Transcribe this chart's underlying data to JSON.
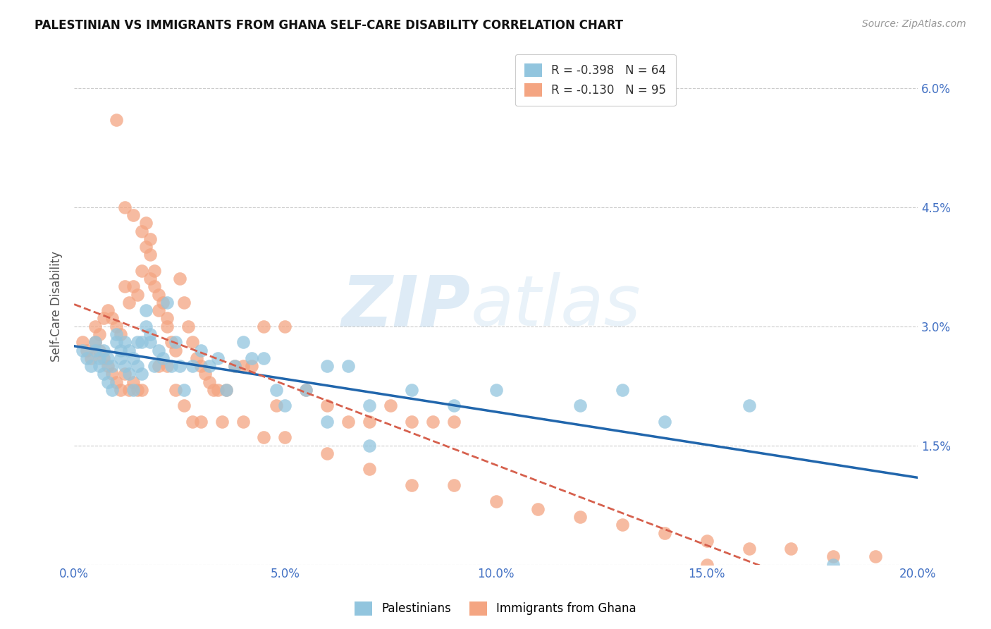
{
  "title": "PALESTINIAN VS IMMIGRANTS FROM GHANA SELF-CARE DISABILITY CORRELATION CHART",
  "source": "Source: ZipAtlas.com",
  "ylabel": "Self-Care Disability",
  "xmin": 0.0,
  "xmax": 0.2,
  "ymin": 0.0,
  "ymax": 0.065,
  "yticks": [
    0.0,
    0.015,
    0.03,
    0.045,
    0.06
  ],
  "ytick_labels": [
    "",
    "1.5%",
    "3.0%",
    "4.5%",
    "6.0%"
  ],
  "xticks": [
    0.0,
    0.05,
    0.1,
    0.15,
    0.2
  ],
  "xtick_labels": [
    "0.0%",
    "5.0%",
    "10.0%",
    "15.0%",
    "20.0%"
  ],
  "legend_r1": "R = ",
  "legend_r1_val": "-0.398",
  "legend_n1": "   N = 64",
  "legend_r2": "R = ",
  "legend_r2_val": "-0.130",
  "legend_n2": "   N = 95",
  "color_blue": "#92c5de",
  "color_pink": "#f4a582",
  "trendline_blue": "#2166ac",
  "trendline_pink": "#d6604d",
  "background_color": "#ffffff",
  "grid_color": "#cccccc",
  "axis_label_color": "#4472c4",
  "watermark_zip": "ZIP",
  "watermark_atlas": "atlas",
  "palestinians_x": [
    0.002,
    0.003,
    0.004,
    0.005,
    0.005,
    0.006,
    0.006,
    0.007,
    0.007,
    0.008,
    0.008,
    0.009,
    0.009,
    0.01,
    0.01,
    0.011,
    0.011,
    0.012,
    0.012,
    0.013,
    0.013,
    0.014,
    0.014,
    0.015,
    0.015,
    0.016,
    0.016,
    0.017,
    0.017,
    0.018,
    0.018,
    0.019,
    0.02,
    0.021,
    0.022,
    0.023,
    0.024,
    0.025,
    0.026,
    0.028,
    0.03,
    0.032,
    0.034,
    0.036,
    0.038,
    0.04,
    0.042,
    0.045,
    0.048,
    0.05,
    0.055,
    0.06,
    0.065,
    0.07,
    0.08,
    0.09,
    0.1,
    0.12,
    0.14,
    0.16,
    0.06,
    0.07,
    0.13,
    0.18
  ],
  "palestinians_y": [
    0.027,
    0.026,
    0.025,
    0.028,
    0.027,
    0.026,
    0.025,
    0.027,
    0.024,
    0.026,
    0.023,
    0.025,
    0.022,
    0.029,
    0.028,
    0.027,
    0.026,
    0.028,
    0.025,
    0.027,
    0.024,
    0.026,
    0.022,
    0.028,
    0.025,
    0.028,
    0.024,
    0.032,
    0.03,
    0.029,
    0.028,
    0.025,
    0.027,
    0.026,
    0.033,
    0.025,
    0.028,
    0.025,
    0.022,
    0.025,
    0.027,
    0.025,
    0.026,
    0.022,
    0.025,
    0.028,
    0.026,
    0.026,
    0.022,
    0.02,
    0.022,
    0.025,
    0.025,
    0.02,
    0.022,
    0.02,
    0.022,
    0.02,
    0.018,
    0.02,
    0.018,
    0.015,
    0.022,
    0.0
  ],
  "ghana_x": [
    0.002,
    0.003,
    0.004,
    0.005,
    0.005,
    0.006,
    0.006,
    0.007,
    0.007,
    0.008,
    0.008,
    0.009,
    0.009,
    0.01,
    0.01,
    0.011,
    0.011,
    0.012,
    0.012,
    0.013,
    0.013,
    0.014,
    0.014,
    0.015,
    0.015,
    0.016,
    0.016,
    0.017,
    0.017,
    0.018,
    0.018,
    0.019,
    0.019,
    0.02,
    0.02,
    0.021,
    0.022,
    0.022,
    0.023,
    0.024,
    0.025,
    0.026,
    0.027,
    0.028,
    0.029,
    0.03,
    0.031,
    0.032,
    0.033,
    0.034,
    0.036,
    0.038,
    0.04,
    0.042,
    0.045,
    0.048,
    0.05,
    0.055,
    0.06,
    0.065,
    0.07,
    0.075,
    0.08,
    0.085,
    0.09,
    0.01,
    0.012,
    0.014,
    0.016,
    0.018,
    0.02,
    0.022,
    0.024,
    0.026,
    0.028,
    0.03,
    0.035,
    0.04,
    0.045,
    0.05,
    0.06,
    0.07,
    0.08,
    0.09,
    0.1,
    0.11,
    0.12,
    0.13,
    0.14,
    0.15,
    0.16,
    0.17,
    0.18,
    0.19,
    0.15
  ],
  "ghana_y": [
    0.028,
    0.027,
    0.026,
    0.03,
    0.028,
    0.029,
    0.027,
    0.031,
    0.026,
    0.032,
    0.025,
    0.031,
    0.024,
    0.03,
    0.023,
    0.029,
    0.022,
    0.035,
    0.024,
    0.033,
    0.022,
    0.035,
    0.023,
    0.034,
    0.022,
    0.042,
    0.022,
    0.043,
    0.04,
    0.041,
    0.039,
    0.037,
    0.035,
    0.034,
    0.032,
    0.033,
    0.031,
    0.03,
    0.028,
    0.027,
    0.036,
    0.033,
    0.03,
    0.028,
    0.026,
    0.025,
    0.024,
    0.023,
    0.022,
    0.022,
    0.022,
    0.025,
    0.025,
    0.025,
    0.03,
    0.02,
    0.03,
    0.022,
    0.02,
    0.018,
    0.018,
    0.02,
    0.018,
    0.018,
    0.018,
    0.056,
    0.045,
    0.044,
    0.037,
    0.036,
    0.025,
    0.025,
    0.022,
    0.02,
    0.018,
    0.018,
    0.018,
    0.018,
    0.016,
    0.016,
    0.014,
    0.012,
    0.01,
    0.01,
    0.008,
    0.007,
    0.006,
    0.005,
    0.004,
    0.003,
    0.002,
    0.002,
    0.001,
    0.001,
    0.0
  ]
}
